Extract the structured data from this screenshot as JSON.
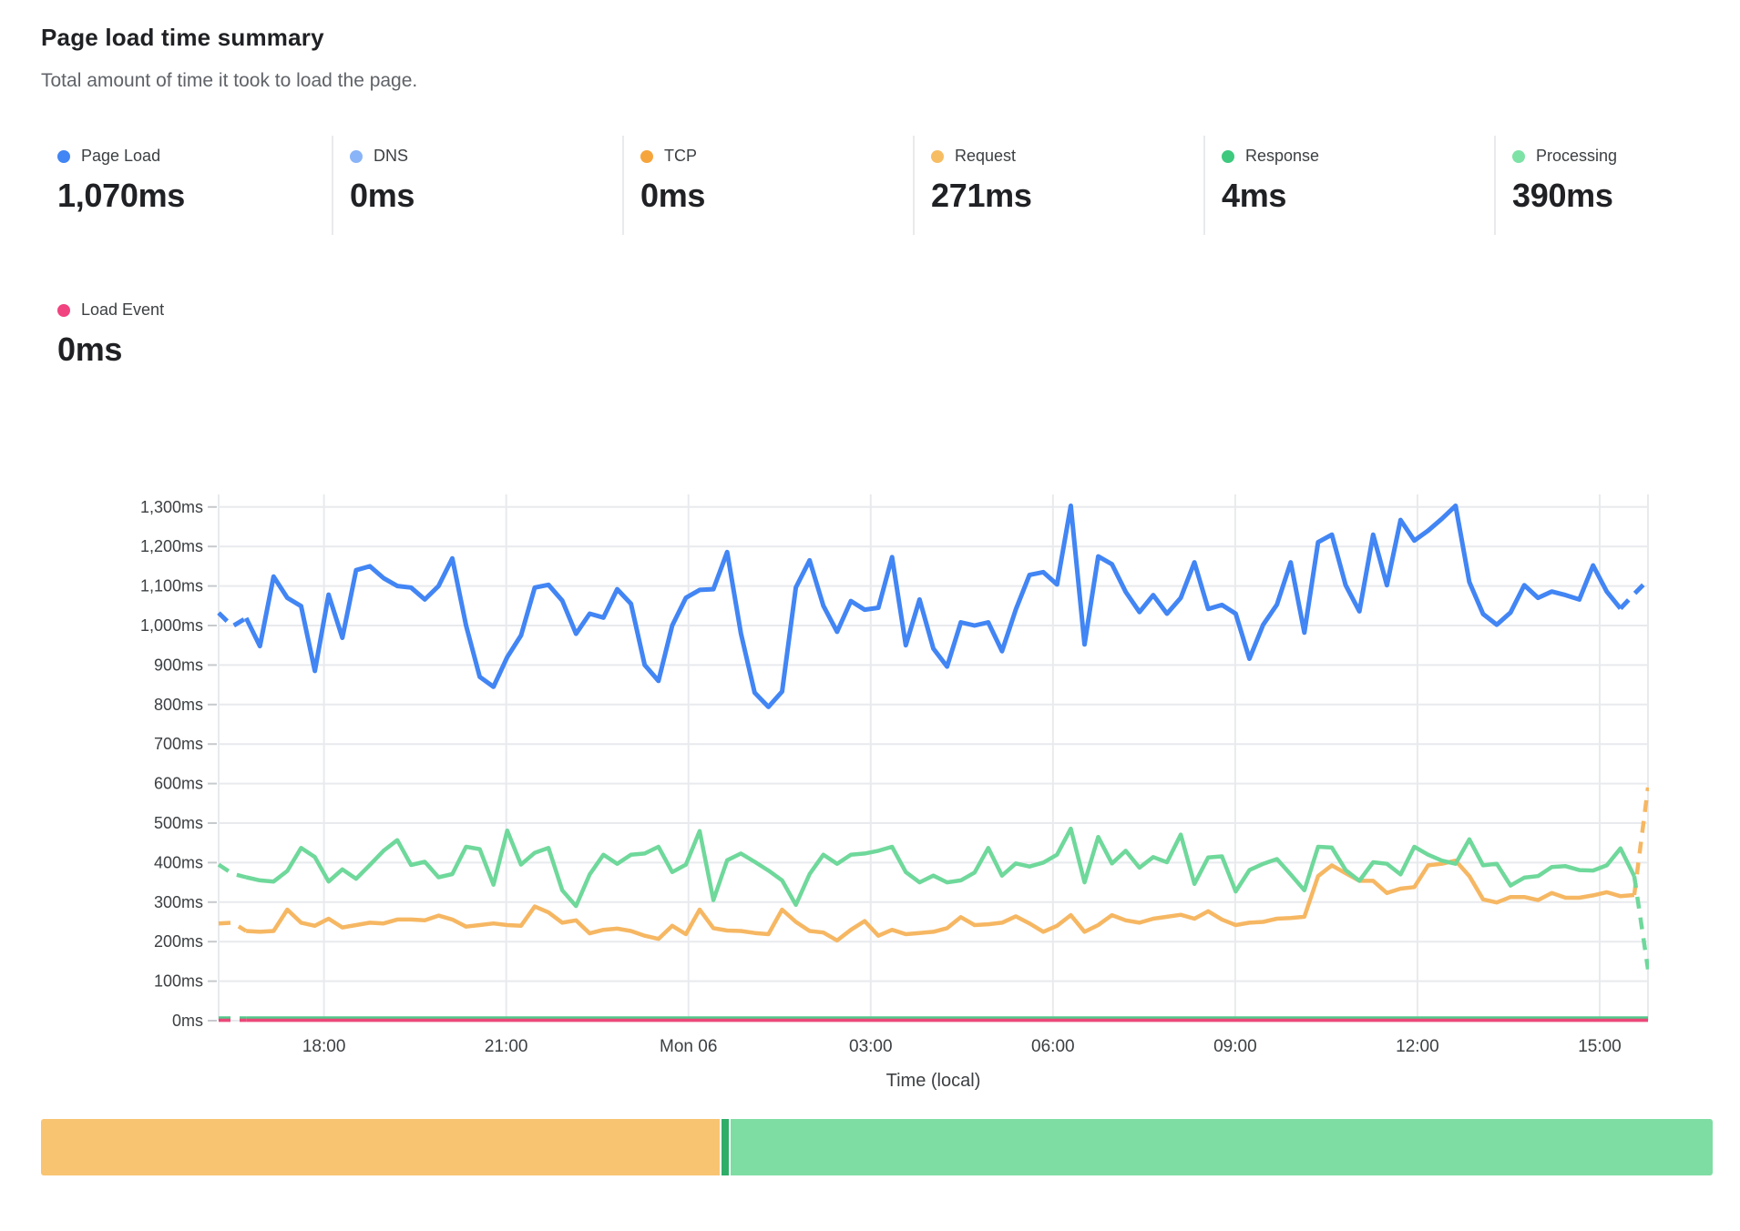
{
  "header": {
    "title": "Page load time summary",
    "subtitle": "Total amount of time it took to load the page."
  },
  "metrics": [
    {
      "id": "page-load",
      "label": "Page Load",
      "value": "1,070ms",
      "color": "#4285f4"
    },
    {
      "id": "dns",
      "label": "DNS",
      "value": "0ms",
      "color": "#8ab4f8"
    },
    {
      "id": "tcp",
      "label": "TCP",
      "value": "0ms",
      "color": "#f6a53c"
    },
    {
      "id": "request",
      "label": "Request",
      "value": "271ms",
      "color": "#f7bd63"
    },
    {
      "id": "response",
      "label": "Response",
      "value": "4ms",
      "color": "#3ec97f"
    },
    {
      "id": "processing",
      "label": "Processing",
      "value": "390ms",
      "color": "#7de2a6"
    }
  ],
  "metrics_secondary": [
    {
      "id": "load-event",
      "label": "Load Event",
      "value": "0ms",
      "color": "#f0437f"
    }
  ],
  "chart_data": {
    "type": "line",
    "xlabel": "Time (local)",
    "ylim": [
      0,
      1330
    ],
    "grid": true,
    "legend_position": "top-summary-cards",
    "colors": {
      "gridline": "#e8eaed",
      "tick_text": "#3c4043"
    },
    "y_ticks": [
      {
        "value": 0,
        "label": "0ms"
      },
      {
        "value": 100,
        "label": "100ms"
      },
      {
        "value": 200,
        "label": "200ms"
      },
      {
        "value": 300,
        "label": "300ms"
      },
      {
        "value": 400,
        "label": "400ms"
      },
      {
        "value": 500,
        "label": "500ms"
      },
      {
        "value": 600,
        "label": "600ms"
      },
      {
        "value": 700,
        "label": "700ms"
      },
      {
        "value": 800,
        "label": "800ms"
      },
      {
        "value": 900,
        "label": "900ms"
      },
      {
        "value": 1000,
        "label": "1,000ms"
      },
      {
        "value": 1100,
        "label": "1,100ms"
      },
      {
        "value": 1200,
        "label": "1,200ms"
      },
      {
        "value": 1300,
        "label": "1,300ms"
      }
    ],
    "x_ticks": [
      {
        "f": 0.0737,
        "label": "18:00"
      },
      {
        "f": 0.2012,
        "label": "21:00"
      },
      {
        "f": 0.3287,
        "label": "Mon 06"
      },
      {
        "f": 0.4562,
        "label": "03:00"
      },
      {
        "f": 0.5837,
        "label": "06:00"
      },
      {
        "f": 0.7112,
        "label": "09:00"
      },
      {
        "f": 0.8387,
        "label": "12:00"
      },
      {
        "f": 0.9662,
        "label": "15:00"
      }
    ],
    "series": [
      {
        "name": "Request",
        "color": "#f6b763",
        "width": 4.5,
        "dash_head": 3,
        "dash_tail": 2,
        "values": [
          246,
          248,
          227,
          225,
          227,
          281,
          248,
          240,
          258,
          236,
          242,
          248,
          246,
          256,
          256,
          254,
          266,
          256,
          238,
          242,
          246,
          242,
          240,
          289,
          274,
          248,
          254,
          221,
          230,
          233,
          227,
          215,
          207,
          240,
          219,
          281,
          234,
          228,
          227,
          222,
          219,
          281,
          250,
          227,
          223,
          203,
          230,
          252,
          215,
          230,
          219,
          222,
          225,
          234,
          262,
          242,
          244,
          248,
          264,
          246,
          225,
          240,
          267,
          225,
          242,
          267,
          254,
          248,
          258,
          263,
          268,
          258,
          277,
          256,
          242,
          248,
          250,
          258,
          260,
          263,
          366,
          393,
          373,
          354,
          354,
          323,
          334,
          338,
          393,
          397,
          405,
          366,
          307,
          299,
          313,
          313,
          305,
          323,
          311,
          311,
          317,
          325,
          315,
          318,
          590
        ]
      },
      {
        "name": "Processing",
        "color": "#6fd89b",
        "width": 4.5,
        "dash_head": 3,
        "dash_tail": 2,
        "values": [
          395,
          372,
          363,
          355,
          352,
          379,
          437,
          414,
          352,
          383,
          359,
          394,
          430,
          457,
          394,
          402,
          363,
          371,
          440,
          434,
          344,
          481,
          395,
          425,
          437,
          330,
          290,
          370,
          420,
          397,
          420,
          423,
          440,
          376,
          395,
          480,
          305,
          406,
          423,
          402,
          380,
          355,
          293,
          371,
          420,
          397,
          420,
          423,
          430,
          440,
          376,
          350,
          367,
          350,
          355,
          375,
          437,
          367,
          398,
          390,
          400,
          420,
          486,
          350,
          465,
          398,
          430,
          387,
          414,
          401,
          471,
          346,
          413,
          416,
          327,
          381,
          397,
          409,
          370,
          330,
          440,
          438,
          381,
          354,
          401,
          397,
          370,
          440,
          420,
          405,
          397,
          459,
          393,
          397,
          342,
          362,
          366,
          389,
          391,
          381,
          380,
          393,
          436,
          366,
          130
        ]
      },
      {
        "name": "Page Load",
        "color": "#4285f4",
        "width": 5,
        "dash_head": 3,
        "dash_tail": 3,
        "values": [
          1032,
          998,
          1019,
          948,
          1124,
          1070,
          1049,
          885,
          1078,
          969,
          1140,
          1150,
          1120,
          1100,
          1096,
          1066,
          1100,
          1170,
          1000,
          870,
          845,
          920,
          975,
          1096,
          1103,
          1063,
          979,
          1030,
          1020,
          1092,
          1055,
          900,
          860,
          1000,
          1070,
          1090,
          1092,
          1186,
          980,
          830,
          794,
          833,
          1096,
          1165,
          1050,
          984,
          1062,
          1040,
          1045,
          1173,
          950,
          1066,
          942,
          896,
          1008,
          1000,
          1008,
          935,
          1040,
          1128,
          1135,
          1104,
          1303,
          952,
          1175,
          1155,
          1085,
          1034,
          1077,
          1030,
          1070,
          1160,
          1042,
          1052,
          1030,
          916,
          1002,
          1053,
          1160,
          982,
          1211,
          1230,
          1102,
          1036,
          1230,
          1102,
          1267,
          1215,
          1240,
          1270,
          1303,
          1110,
          1029,
          1002,
          1033,
          1102,
          1070,
          1086,
          1077,
          1066,
          1152,
          1086,
          1043,
          1080,
          1115
        ]
      },
      {
        "name": "Load Event",
        "color": "#ec4879",
        "width": 4.5,
        "dash_head": 3,
        "dash_tail": 0,
        "constant": 2,
        "points": 105
      },
      {
        "name": "Response",
        "color": "#52c98a",
        "width": 2.5,
        "dash_head": 3,
        "dash_tail": 0,
        "constant": 8,
        "points": 105
      }
    ]
  },
  "distribution_bar": {
    "segments": [
      {
        "name": "request-share",
        "color": "#f8c472",
        "fraction": 0.407
      },
      {
        "name": "divider",
        "color": "#2fae68",
        "fraction": 0.004
      },
      {
        "name": "processing-share",
        "color": "#7edda2",
        "fraction": 0.589
      }
    ]
  }
}
